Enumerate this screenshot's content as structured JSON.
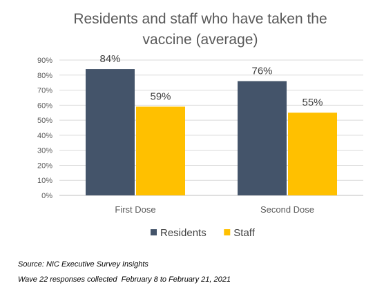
{
  "chart_data": {
    "type": "bar",
    "title_lines": [
      "Residents and staff who have taken the",
      "vaccine (average)"
    ],
    "categories": [
      "First Dose",
      "Second Dose"
    ],
    "series": [
      {
        "name": "Residents",
        "values": [
          84,
          76
        ],
        "labels": [
          "84%",
          "76%"
        ],
        "color": "#44546a"
      },
      {
        "name": "Staff",
        "values": [
          59,
          55
        ],
        "labels": [
          "59%",
          "55%"
        ],
        "color": "#ffc000"
      }
    ],
    "ylim": [
      0,
      90
    ],
    "yticks": [
      "0%",
      "10%",
      "20%",
      "30%",
      "40%",
      "50%",
      "60%",
      "70%",
      "80%",
      "90%"
    ],
    "grid": true,
    "legend": "bottom"
  },
  "footnotes": {
    "source": "Source: NIC Executive Survey Insights",
    "wave": "Wave 22 responses collected  February 8 to February 21, 2021"
  }
}
